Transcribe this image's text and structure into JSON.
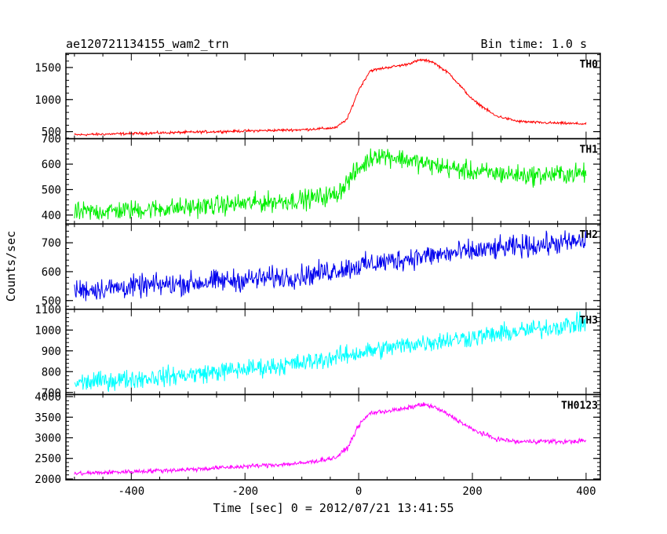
{
  "header": {
    "title": "ae120721134155_wam2_trn",
    "bin_time": "Bin time: 1.0 s"
  },
  "axes": {
    "xlabel": "Time [sec] 0 = 2012/07/21 13:41:55",
    "ylabel": "Counts/sec"
  },
  "chart_data": {
    "type": "line",
    "title": "ae120721134155_wam2_trn",
    "subtitle": "Bin time: 1.0 s",
    "xlabel": "Time [sec] 0 = 2012/07/21 13:41:55",
    "ylabel": "Counts/sec",
    "xlim": [
      -515,
      425
    ],
    "x_ticks": [
      -400,
      -200,
      0,
      200,
      400
    ],
    "shared_x": true,
    "panels": [
      {
        "name": "TH0",
        "color": "#ff0000",
        "ylim": [
          390,
          1720
        ],
        "y_ticks": [
          500,
          1000,
          1500
        ],
        "noise": 20,
        "series": {
          "x": [
            -500,
            -300,
            -100,
            -40,
            -20,
            0,
            20,
            50,
            80,
            110,
            130,
            160,
            200,
            240,
            280,
            320,
            360,
            400
          ],
          "y": [
            450,
            490,
            530,
            560,
            700,
            1150,
            1450,
            1500,
            1540,
            1620,
            1590,
            1400,
            1000,
            750,
            660,
            640,
            630,
            620
          ]
        }
      },
      {
        "name": "TH1",
        "color": "#00ee00",
        "ylim": [
          365,
          700
        ],
        "y_ticks": [
          400,
          500,
          600,
          700
        ],
        "noise": 38,
        "series": {
          "x": [
            -500,
            -300,
            -100,
            -40,
            0,
            30,
            80,
            120,
            200,
            300,
            400
          ],
          "y": [
            410,
            430,
            460,
            480,
            580,
            640,
            620,
            600,
            570,
            555,
            565
          ]
        }
      },
      {
        "name": "TH2",
        "color": "#0000ee",
        "ylim": [
          470,
          765
        ],
        "y_ticks": [
          500,
          600,
          700
        ],
        "noise": 38,
        "series": {
          "x": [
            -500,
            -300,
            -100,
            0,
            100,
            200,
            300,
            400
          ],
          "y": [
            535,
            560,
            585,
            620,
            650,
            670,
            690,
            705
          ]
        }
      },
      {
        "name": "TH3",
        "color": "#00ffff",
        "ylim": [
          690,
          1100
        ],
        "y_ticks": [
          700,
          800,
          900,
          1000,
          1100
        ],
        "noise": 45,
        "series": {
          "x": [
            -500,
            -300,
            -100,
            0,
            100,
            200,
            300,
            400
          ],
          "y": [
            745,
            785,
            840,
            890,
            935,
            965,
            1000,
            1035
          ]
        }
      },
      {
        "name": "TH0123",
        "color": "#ff00ff",
        "ylim": [
          1980,
          4050
        ],
        "y_ticks": [
          2000,
          2500,
          3000,
          3500,
          4000
        ],
        "noise": 55,
        "series": {
          "x": [
            -500,
            -300,
            -100,
            -40,
            -20,
            0,
            20,
            50,
            80,
            110,
            130,
            160,
            200,
            240,
            280,
            320,
            360,
            400
          ],
          "y": [
            2130,
            2230,
            2380,
            2520,
            2750,
            3300,
            3600,
            3650,
            3700,
            3810,
            3760,
            3550,
            3200,
            2980,
            2900,
            2920,
            2900,
            2930
          ]
        }
      }
    ]
  }
}
